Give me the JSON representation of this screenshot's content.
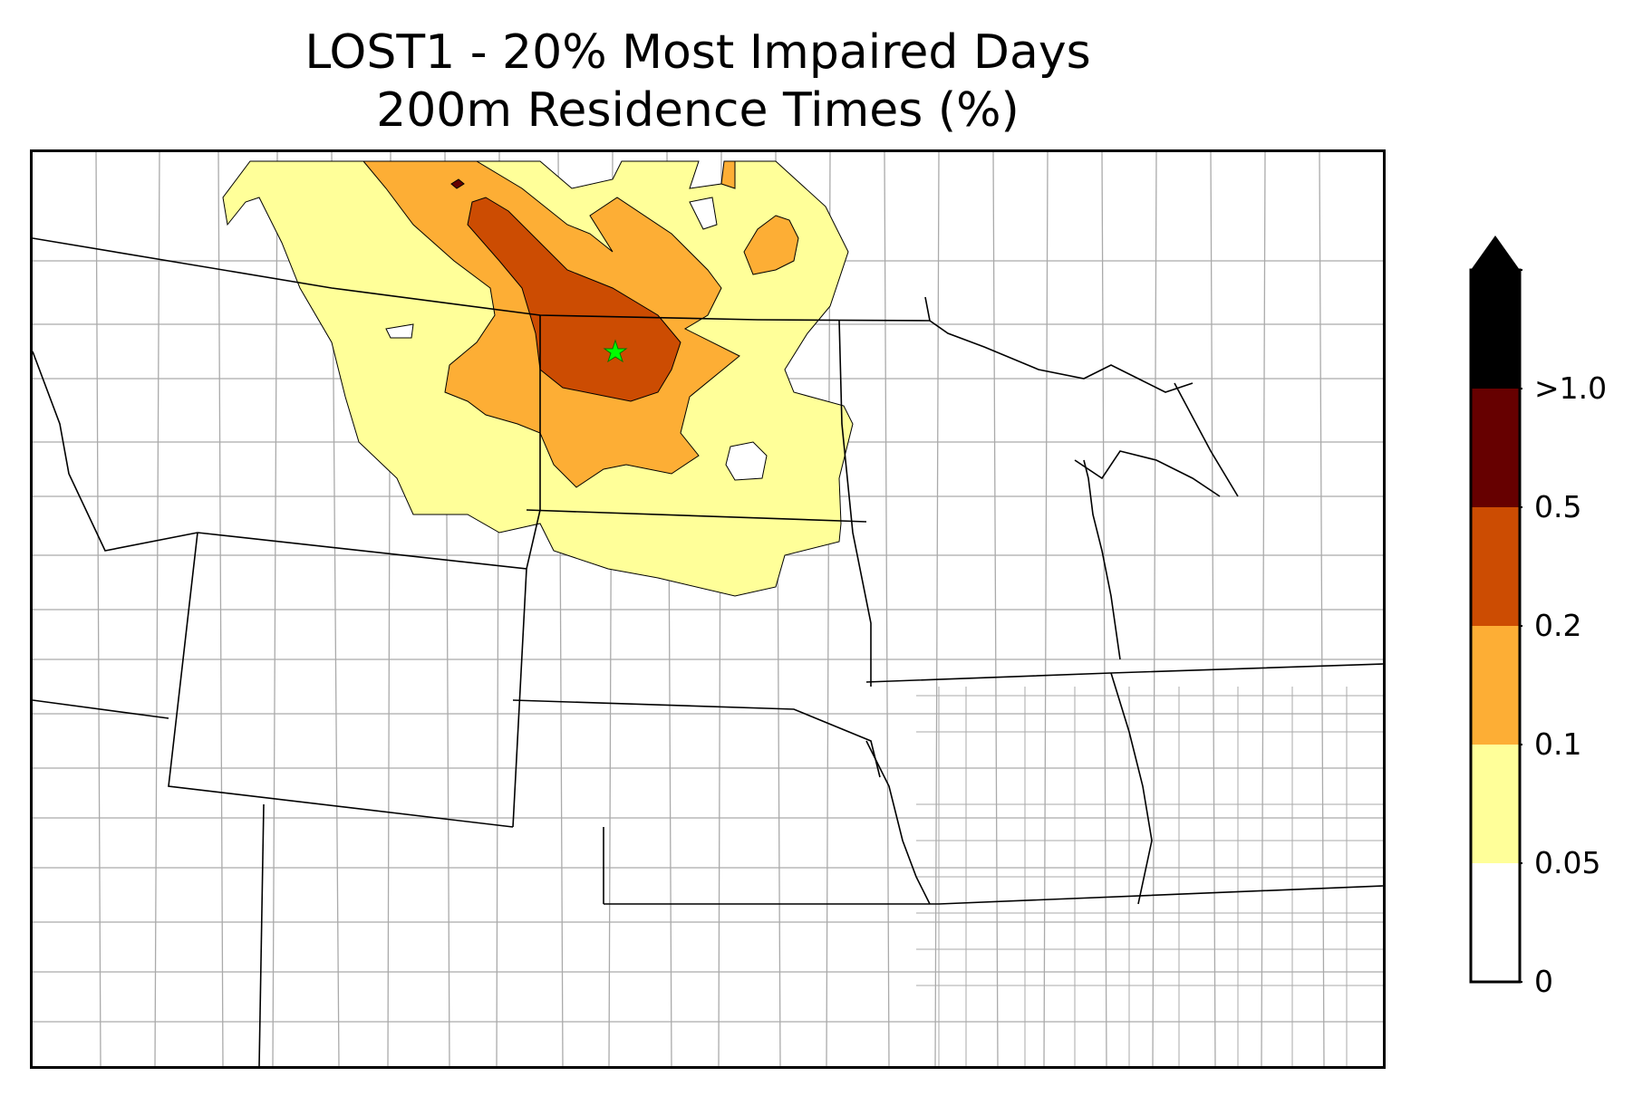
{
  "title": {
    "line1": "LOST1 - 20% Most Impaired Days",
    "line2": "200m Residence Times (%)"
  },
  "map": {
    "site_marker": {
      "shape": "star",
      "color": "#00ff00"
    },
    "state_border_color": "#000000",
    "county_border_color": "#aaaaaa"
  },
  "colorbar": {
    "extend": "max",
    "levels": [
      {
        "label": "0",
        "color": "#ffffff"
      },
      {
        "label": "0.05",
        "color": "#ffff99"
      },
      {
        "label": "0.1",
        "color": "#fdae35"
      },
      {
        "label": "0.2",
        "color": "#cc4c02"
      },
      {
        "label": "0.5",
        "color": "#660000"
      },
      {
        "label": ">1.0",
        "color": "#000000"
      }
    ]
  }
}
